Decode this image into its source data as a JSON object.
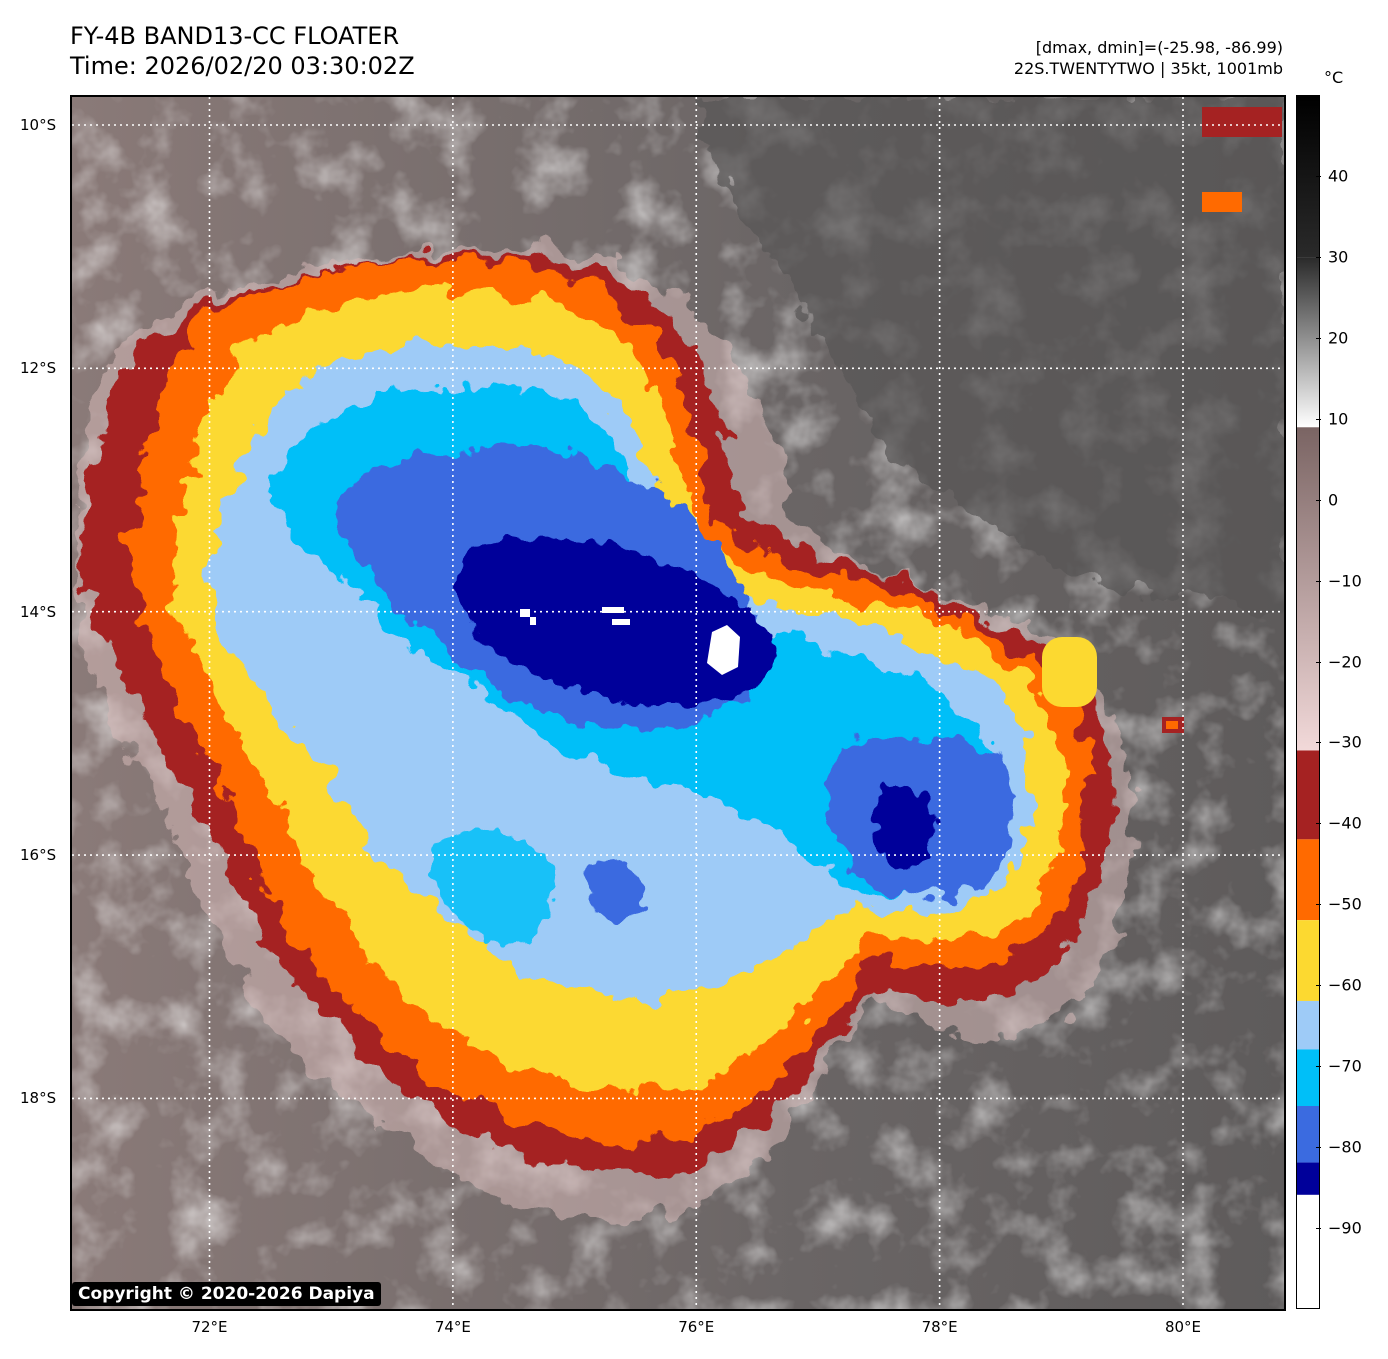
{
  "header": {
    "title_line1": "FY-4B BAND13-CC FLOATER",
    "title_line2": "Time: 2026/02/20 03:30:02Z",
    "stats_line": "[dmax, dmin]=(-25.98, -86.99)",
    "storm_line": "22S.TWENTYTWO | 35kt, 1001mb"
  },
  "colorbar": {
    "unit": "°C",
    "range": [
      -100,
      50
    ],
    "ticks": [
      "40",
      "30",
      "20",
      "10",
      "0",
      "−10",
      "−20",
      "−30",
      "−40",
      "−50",
      "−60",
      "−70",
      "−80",
      "−90"
    ],
    "tick_values": [
      40,
      30,
      20,
      10,
      0,
      -10,
      -20,
      -30,
      -40,
      -50,
      -60,
      -70,
      -80,
      -90
    ],
    "segments": [
      {
        "from": 50,
        "to": 30,
        "color_from": "#000000",
        "color_to": "#2a2a2a"
      },
      {
        "from": 30,
        "to": 9,
        "color_from": "#2a2a2a",
        "color_to": "#ffffff"
      },
      {
        "from": 9,
        "to": -31,
        "color_from": "#7a6463",
        "color_to": "#f2d9d9"
      },
      {
        "from": -31,
        "to": -42,
        "color": "#a52222"
      },
      {
        "from": -42,
        "to": -52,
        "color": "#ff6a00"
      },
      {
        "from": -52,
        "to": -62,
        "color": "#fcd930"
      },
      {
        "from": -62,
        "to": -68,
        "color": "#9ecbf7"
      },
      {
        "from": -68,
        "to": -75,
        "color": "#00bff8"
      },
      {
        "from": -75,
        "to": -82,
        "color": "#3b6be0"
      },
      {
        "from": -82,
        "to": -86,
        "color": "#00009a"
      },
      {
        "from": -86,
        "to": -100,
        "color": "#ffffff"
      }
    ]
  },
  "map": {
    "lon_range": [
      70.87,
      80.83
    ],
    "lat_range": [
      -19.73,
      -9.77
    ],
    "lat_lines": [
      -10,
      -12,
      -14,
      -16,
      -18
    ],
    "lon_lines": [
      72,
      74,
      76,
      78,
      80
    ],
    "lat_labels": [
      "10°S",
      "12°S",
      "14°S",
      "16°S",
      "18°S"
    ],
    "lon_labels": [
      "72°E",
      "74°E",
      "76°E",
      "78°E",
      "80°E"
    ],
    "colors": {
      "ocean": "#6c6666",
      "cold_cloud_edge": "#a52222",
      "orange": "#ff6a00",
      "yellow": "#fcd930",
      "light_blue": "#9ecbf7",
      "cyan": "#00bff8",
      "blue": "#3b6be0",
      "navy": "#00009a",
      "overshoot": "#ffffff"
    }
  },
  "footer": {
    "copyright": "Copyright © 2020-2026 Dapiya"
  }
}
